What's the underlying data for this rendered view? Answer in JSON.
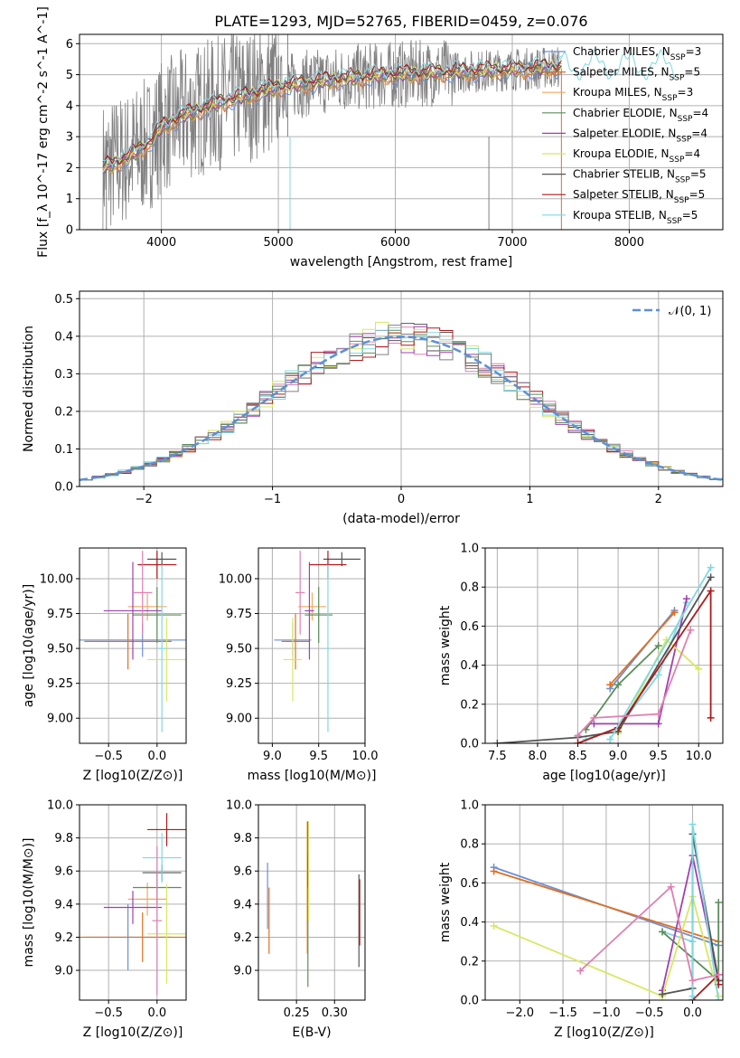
{
  "figure": {
    "title": "PLATE=1293, MJD=52765, FIBERID=0459, z=0.076"
  },
  "colors": [
    "#6a8fd8",
    "#e07020",
    "#f0a860",
    "#5a8f5a",
    "#a040b0",
    "#d8e860",
    "#555555",
    "#b01818",
    "#80d8e0",
    "#e080b0",
    "#d0e060",
    "#808080"
  ],
  "chart_data": [
    {
      "id": "spectrum",
      "type": "line",
      "xlabel": "wavelength [Angstrom, rest frame]",
      "ylabel": "Flux [f_λ 10^-17 erg cm^-2 s^-1 A^-1]",
      "xlim": [
        3300,
        8800
      ],
      "ylim": [
        0,
        6.3
      ],
      "xticks": [
        4000,
        5000,
        6000,
        7000,
        8000
      ],
      "yticks": [
        0,
        1,
        2,
        3,
        4,
        5,
        6
      ],
      "continuum": {
        "x": [
          3500,
          3700,
          3900,
          4000,
          4200,
          4500,
          4800,
          5000,
          5200,
          5500,
          5800,
          6000,
          6300,
          6600,
          6900,
          7200,
          7400
        ],
        "y": [
          2.0,
          2.3,
          2.8,
          3.3,
          3.7,
          4.1,
          4.4,
          4.6,
          4.7,
          4.85,
          4.95,
          5.0,
          5.05,
          5.1,
          5.15,
          5.2,
          5.25
        ]
      },
      "model_extension_x": [
        7400,
        8400
      ],
      "series": [
        {
          "name": "Chabrier MILES",
          "nssp": "3"
        },
        {
          "name": "Salpeter MILES",
          "nssp": "5"
        },
        {
          "name": "Kroupa MILES",
          "nssp": "3"
        },
        {
          "name": "Chabrier ELODIE",
          "nssp": "4"
        },
        {
          "name": "Salpeter ELODIE",
          "nssp": "4"
        },
        {
          "name": "Kroupa ELODIE",
          "nssp": "4"
        },
        {
          "name": "Chabrier STELIB",
          "nssp": "5"
        },
        {
          "name": "Salpeter STELIB",
          "nssp": "5"
        },
        {
          "name": "Kroupa STELIB",
          "nssp": "5"
        }
      ],
      "legend_placement": "right"
    },
    {
      "id": "residuals",
      "type": "histogram",
      "xlabel": "(data-model)/error",
      "ylabel": "Normed distribution",
      "xlim": [
        -2.5,
        2.5
      ],
      "ylim": [
        0,
        0.52
      ],
      "xticks": [
        -2,
        -1,
        0,
        1,
        2
      ],
      "yticks": [
        0.0,
        0.1,
        0.2,
        0.3,
        0.4,
        0.5
      ],
      "bin_width": 0.1,
      "reference": {
        "name": "𝒩(0, 1)",
        "mean": 0,
        "sigma": 1
      },
      "legend_placement": "top-right"
    },
    {
      "id": "age_vs_Z",
      "type": "errorbar",
      "xlabel": "Z [log10(Z/Z⊙)]",
      "ylabel": "age [log10(age/yr)]",
      "xlim": [
        -0.8,
        0.3
      ],
      "ylim": [
        8.82,
        10.22
      ],
      "xticks": [
        -0.5,
        0.0
      ],
      "yticks": [
        9.0,
        9.25,
        9.5,
        9.75,
        10.0
      ],
      "points": [
        {
          "x": -0.15,
          "y": 9.56,
          "xerr": 0.65,
          "yerr": 0.12
        },
        {
          "x": -0.3,
          "y": 9.55,
          "xerr": 0.45,
          "yerr": 0.2
        },
        {
          "x": -0.1,
          "y": 9.8,
          "xerr": 0.2,
          "yerr": 0.1
        },
        {
          "x": 0.0,
          "y": 9.74,
          "xerr": 0.25,
          "yerr": 0.2
        },
        {
          "x": -0.25,
          "y": 9.77,
          "xerr": 0.3,
          "yerr": 0.35
        },
        {
          "x": 0.1,
          "y": 9.42,
          "xerr": 0.2,
          "yerr": 0.3
        },
        {
          "x": 0.05,
          "y": 10.14,
          "xerr": 0.15,
          "yerr": 0.05
        },
        {
          "x": 0.0,
          "y": 10.1,
          "xerr": 0.2,
          "yerr": 0.1
        },
        {
          "x": 0.05,
          "y": 9.5,
          "xerr": 0.05,
          "yerr": 0.6
        },
        {
          "x": -0.15,
          "y": 9.9,
          "xerr": 0.1,
          "yerr": 0.3
        }
      ]
    },
    {
      "id": "age_vs_mass",
      "type": "errorbar",
      "xlabel": "mass [log10(M/M⊙)]",
      "ylabel": "",
      "xlim": [
        8.85,
        10.0
      ],
      "ylim": [
        8.82,
        10.22
      ],
      "xticks": [
        9.0,
        9.5,
        10.0
      ],
      "yticks": [
        9.0,
        9.25,
        9.5,
        9.75,
        10.0
      ],
      "points": [
        {
          "x": 9.22,
          "y": 9.56,
          "xerr": 0.2,
          "yerr": 0.12
        },
        {
          "x": 9.25,
          "y": 9.55,
          "xerr": 0.15,
          "yerr": 0.2
        },
        {
          "x": 9.43,
          "y": 9.8,
          "xerr": 0.15,
          "yerr": 0.1
        },
        {
          "x": 9.5,
          "y": 9.74,
          "xerr": 0.15,
          "yerr": 0.2
        },
        {
          "x": 9.4,
          "y": 9.77,
          "xerr": 0.05,
          "yerr": 0.35
        },
        {
          "x": 9.22,
          "y": 9.42,
          "xerr": 0.1,
          "yerr": 0.3
        },
        {
          "x": 9.75,
          "y": 10.14,
          "xerr": 0.2,
          "yerr": 0.05
        },
        {
          "x": 9.6,
          "y": 10.1,
          "xerr": 0.2,
          "yerr": 0.1
        },
        {
          "x": 9.6,
          "y": 9.5,
          "xerr": 0.02,
          "yerr": 0.6
        },
        {
          "x": 9.3,
          "y": 9.9,
          "xerr": 0.05,
          "yerr": 0.3
        }
      ]
    },
    {
      "id": "weight_vs_age",
      "type": "line",
      "xlabel": "age [log10(age/yr)]",
      "ylabel": "mass weight",
      "xlim": [
        7.35,
        10.3
      ],
      "ylim": [
        0,
        1.0
      ],
      "xticks": [
        7.5,
        8.0,
        8.5,
        9.0,
        9.5,
        10.0
      ],
      "yticks": [
        0.0,
        0.2,
        0.4,
        0.6,
        0.8,
        1.0
      ],
      "series": [
        {
          "x": [
            8.9,
            9.7
          ],
          "y": [
            0.28,
            0.68
          ]
        },
        {
          "x": [
            8.9,
            9.7
          ],
          "y": [
            0.3,
            0.67
          ]
        },
        {
          "x": [
            8.6,
            9.0,
            9.5,
            9.85
          ],
          "y": [
            0.02,
            0.08,
            0.35,
            0.72
          ]
        },
        {
          "x": [
            8.6,
            9.0,
            9.5
          ],
          "y": [
            0.07,
            0.3,
            0.5
          ]
        },
        {
          "x": [
            8.7,
            9.5,
            9.85
          ],
          "y": [
            0.1,
            0.1,
            0.74
          ]
        },
        {
          "x": [
            9.0,
            9.6,
            10.0
          ],
          "y": [
            0.05,
            0.53,
            0.38
          ]
        },
        {
          "x": [
            7.5,
            8.5,
            9.0,
            10.15
          ],
          "y": [
            0.0,
            0.03,
            0.06,
            0.85
          ]
        },
        {
          "x": [
            8.5,
            9.0,
            10.15,
            10.15
          ],
          "y": [
            0.0,
            0.08,
            0.78,
            0.13
          ]
        },
        {
          "x": [
            8.9,
            10.15
          ],
          "y": [
            0.02,
            0.9
          ]
        },
        {
          "x": [
            8.5,
            8.7,
            9.5,
            9.9
          ],
          "y": [
            0.04,
            0.13,
            0.15,
            0.58
          ]
        }
      ]
    },
    {
      "id": "mass_vs_Z",
      "type": "errorbar",
      "xlabel": "Z [log10(Z/Z⊙)]",
      "ylabel": "mass [log10(M/M⊙)]",
      "xlim": [
        -0.8,
        0.3
      ],
      "ylim": [
        8.82,
        10.0
      ],
      "xticks": [
        -0.5,
        0.0
      ],
      "yticks": [
        9.0,
        9.2,
        9.4,
        9.6,
        9.8,
        10.0
      ],
      "points": [
        {
          "x": -0.3,
          "y": 9.2,
          "xerr": 0.45,
          "yerr": 0.2
        },
        {
          "x": -0.15,
          "y": 9.2,
          "xerr": 0.65,
          "yerr": 0.15
        },
        {
          "x": -0.1,
          "y": 9.43,
          "xerr": 0.2,
          "yerr": 0.1
        },
        {
          "x": 0.0,
          "y": 9.5,
          "xerr": 0.25,
          "yerr": 0.1
        },
        {
          "x": -0.25,
          "y": 9.38,
          "xerr": 0.3,
          "yerr": 0.1
        },
        {
          "x": 0.1,
          "y": 9.22,
          "xerr": 0.2,
          "yerr": 0.3
        },
        {
          "x": 0.05,
          "y": 9.59,
          "xerr": 0.2,
          "yerr": 0.05
        },
        {
          "x": 0.1,
          "y": 9.85,
          "xerr": 0.2,
          "yerr": 0.1
        },
        {
          "x": 0.05,
          "y": 9.68,
          "xerr": 0.2,
          "yerr": 0.15
        },
        {
          "x": 0.0,
          "y": 9.3,
          "xerr": 0.05,
          "yerr": 0.45
        }
      ]
    },
    {
      "id": "mass_vs_EBV",
      "type": "errorbar",
      "xlabel": "E(B-V)",
      "ylabel": "",
      "xlim": [
        0.2,
        0.34
      ],
      "ylim": [
        8.82,
        10.0
      ],
      "xticks": [
        0.25,
        0.3
      ],
      "yticks": [
        9.0,
        9.2,
        9.4,
        9.6,
        9.8,
        10.0
      ],
      "points": [
        {
          "x": 0.212,
          "y": 9.45,
          "xerr": 0,
          "yerr": 0.2
        },
        {
          "x": 0.214,
          "y": 9.3,
          "xerr": 0,
          "yerr": 0.2
        },
        {
          "x": 0.264,
          "y": 9.5,
          "xerr": 0,
          "yerr": 0.4
        },
        {
          "x": 0.265,
          "y": 9.3,
          "xerr": 0,
          "yerr": 0.4
        },
        {
          "x": 0.265,
          "y": 9.7,
          "xerr": 0,
          "yerr": 0.2
        },
        {
          "x": 0.266,
          "y": 9.6,
          "xerr": 0,
          "yerr": 0.3
        },
        {
          "x": 0.332,
          "y": 9.3,
          "xerr": 0,
          "yerr": 0.28
        },
        {
          "x": 0.333,
          "y": 9.35,
          "xerr": 0,
          "yerr": 0.2
        }
      ]
    },
    {
      "id": "weight_vs_Z",
      "type": "line",
      "xlabel": "Z [log10(Z/Z⊙)]",
      "ylabel": "mass weight",
      "xlim": [
        -2.4,
        0.35
      ],
      "ylim": [
        0,
        1.0
      ],
      "xticks": [
        -2.0,
        -1.5,
        -1.0,
        -0.5,
        0.0
      ],
      "yticks": [
        0.0,
        0.2,
        0.4,
        0.6,
        0.8,
        1.0
      ],
      "series": [
        {
          "x": [
            -2.3,
            0.3
          ],
          "y": [
            0.68,
            0.28
          ]
        },
        {
          "x": [
            -2.3,
            0.3
          ],
          "y": [
            0.66,
            0.3
          ]
        },
        {
          "x": [
            -0.35,
            0.0,
            0.0
          ],
          "y": [
            0.35,
            0.3,
            0.0
          ]
        },
        {
          "x": [
            -0.35,
            0.3,
            0.3
          ],
          "y": [
            0.35,
            0.1,
            0.5
          ]
        },
        {
          "x": [
            -0.35,
            0.0,
            0.3
          ],
          "y": [
            0.05,
            0.74,
            0.1
          ]
        },
        {
          "x": [
            -2.3,
            -0.35,
            0.0,
            0.3
          ],
          "y": [
            0.38,
            0.02,
            0.53,
            0.02
          ]
        },
        {
          "x": [
            -0.35,
            0.0,
            0.0,
            0.3
          ],
          "y": [
            0.03,
            0.06,
            0.85,
            0.1
          ]
        },
        {
          "x": [
            0.0,
            0.3,
            0.3
          ],
          "y": [
            0.0,
            0.13,
            0.08
          ]
        },
        {
          "x": [
            0.0,
            0.0,
            0.3
          ],
          "y": [
            0.02,
            0.9,
            0.0
          ]
        },
        {
          "x": [
            -1.3,
            -0.25,
            0.0,
            0.3
          ],
          "y": [
            0.15,
            0.58,
            0.1,
            0.13
          ]
        }
      ]
    }
  ]
}
